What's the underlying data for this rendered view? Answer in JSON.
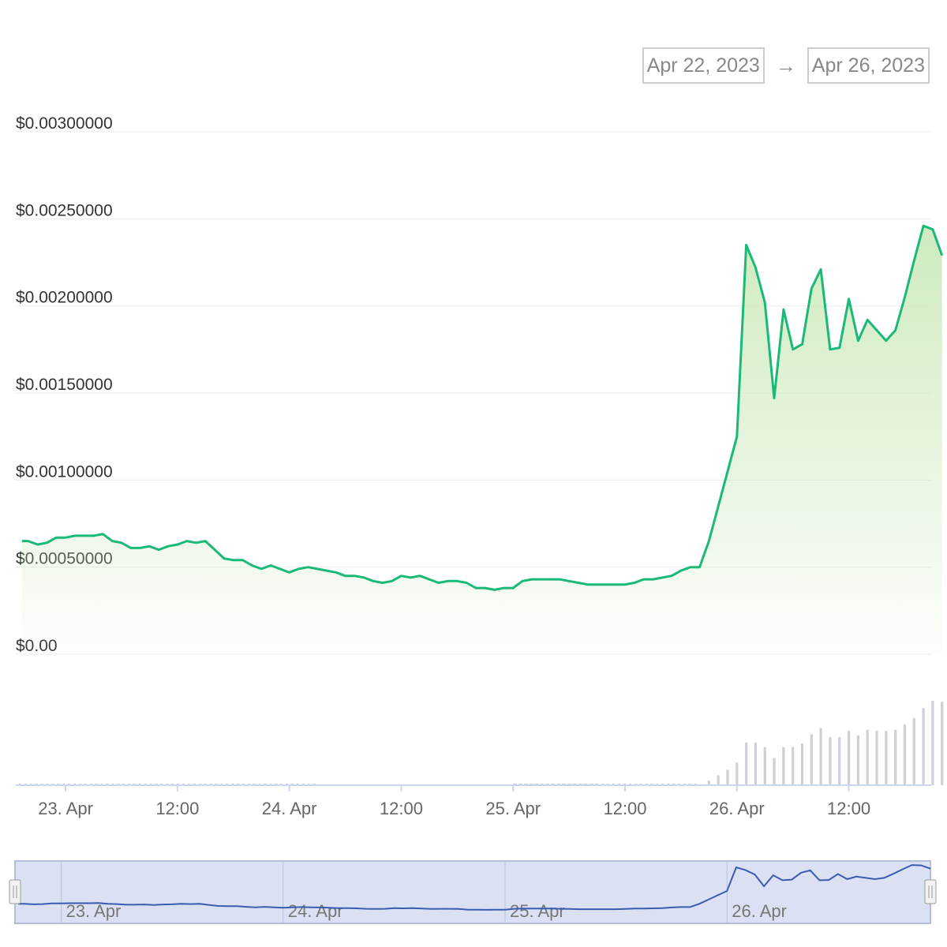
{
  "range_selector": {
    "from": "Apr 22, 2023",
    "arrow": "→",
    "to": "Apr 26, 2023"
  },
  "chart_data": {
    "type": "line",
    "title": "",
    "xlabel": "",
    "ylabel": "",
    "x_ticks": [
      "23. Apr",
      "12:00",
      "24. Apr",
      "12:00",
      "25. Apr",
      "12:00",
      "26. Apr",
      "12:00"
    ],
    "y_ticks": [
      "$0.00",
      "$0.00050000",
      "$0.00100000",
      "$0.00150000",
      "$0.00200000",
      "$0.00250000",
      "$0.00300000"
    ],
    "ylim": [
      0,
      0.003
    ],
    "xlim": [
      "2023-04-22T19:00",
      "2023-04-26T20:30"
    ],
    "grid": true,
    "colors": {
      "line": "#1bb978",
      "area": "#c9e8b8",
      "volume": "#cfcfd6",
      "navigator_line": "#3a5cb0",
      "navigator_bg": "#dbe1f3"
    },
    "series": [
      {
        "values": [
          [
            "2023-04-22T19:20",
            0.00065
          ],
          [
            "2023-04-22T20:00",
            0.00065
          ],
          [
            "2023-04-22T21:00",
            0.00063
          ],
          [
            "2023-04-22T22:00",
            0.00064
          ],
          [
            "2023-04-22T23:00",
            0.00067
          ],
          [
            "2023-04-23T00:00",
            0.00067
          ],
          [
            "2023-04-23T01:00",
            0.00068
          ],
          [
            "2023-04-23T02:00",
            0.00068
          ],
          [
            "2023-04-23T03:00",
            0.00068
          ],
          [
            "2023-04-23T04:00",
            0.00069
          ],
          [
            "2023-04-23T05:00",
            0.00065
          ],
          [
            "2023-04-23T06:00",
            0.00064
          ],
          [
            "2023-04-23T07:00",
            0.00061
          ],
          [
            "2023-04-23T08:00",
            0.00061
          ],
          [
            "2023-04-23T09:00",
            0.00062
          ],
          [
            "2023-04-23T10:00",
            0.0006
          ],
          [
            "2023-04-23T11:00",
            0.00062
          ],
          [
            "2023-04-23T12:00",
            0.00063
          ],
          [
            "2023-04-23T13:00",
            0.00065
          ],
          [
            "2023-04-23T14:00",
            0.00064
          ],
          [
            "2023-04-23T15:00",
            0.00065
          ],
          [
            "2023-04-23T16:00",
            0.0006
          ],
          [
            "2023-04-23T17:00",
            0.00055
          ],
          [
            "2023-04-23T18:00",
            0.00054
          ],
          [
            "2023-04-23T19:00",
            0.00054
          ],
          [
            "2023-04-23T20:00",
            0.00051
          ],
          [
            "2023-04-23T21:00",
            0.00049
          ],
          [
            "2023-04-23T22:00",
            0.00051
          ],
          [
            "2023-04-23T23:00",
            0.00049
          ],
          [
            "2023-04-24T00:00",
            0.00047
          ],
          [
            "2023-04-24T01:00",
            0.00049
          ],
          [
            "2023-04-24T02:00",
            0.0005
          ],
          [
            "2023-04-24T03:00",
            0.00049
          ],
          [
            "2023-04-24T04:00",
            0.00048
          ],
          [
            "2023-04-24T05:00",
            0.00047
          ],
          [
            "2023-04-24T06:00",
            0.00045
          ],
          [
            "2023-04-24T07:00",
            0.00045
          ],
          [
            "2023-04-24T08:00",
            0.00044
          ],
          [
            "2023-04-24T09:00",
            0.00042
          ],
          [
            "2023-04-24T10:00",
            0.00041
          ],
          [
            "2023-04-24T11:00",
            0.00042
          ],
          [
            "2023-04-24T12:00",
            0.00045
          ],
          [
            "2023-04-24T13:00",
            0.00044
          ],
          [
            "2023-04-24T14:00",
            0.00045
          ],
          [
            "2023-04-24T15:00",
            0.00043
          ],
          [
            "2023-04-24T16:00",
            0.00041
          ],
          [
            "2023-04-24T17:00",
            0.00042
          ],
          [
            "2023-04-24T18:00",
            0.00042
          ],
          [
            "2023-04-24T19:00",
            0.00041
          ],
          [
            "2023-04-24T20:00",
            0.00038
          ],
          [
            "2023-04-24T21:00",
            0.00038
          ],
          [
            "2023-04-24T22:00",
            0.00037
          ],
          [
            "2023-04-24T23:00",
            0.00038
          ],
          [
            "2023-04-25T00:00",
            0.00038
          ],
          [
            "2023-04-25T01:00",
            0.00042
          ],
          [
            "2023-04-25T02:00",
            0.00043
          ],
          [
            "2023-04-25T03:00",
            0.00043
          ],
          [
            "2023-04-25T04:00",
            0.00043
          ],
          [
            "2023-04-25T05:00",
            0.00043
          ],
          [
            "2023-04-25T06:00",
            0.00042
          ],
          [
            "2023-04-25T07:00",
            0.00041
          ],
          [
            "2023-04-25T08:00",
            0.0004
          ],
          [
            "2023-04-25T09:00",
            0.0004
          ],
          [
            "2023-04-25T10:00",
            0.0004
          ],
          [
            "2023-04-25T11:00",
            0.0004
          ],
          [
            "2023-04-25T12:00",
            0.0004
          ],
          [
            "2023-04-25T13:00",
            0.00041
          ],
          [
            "2023-04-25T14:00",
            0.00043
          ],
          [
            "2023-04-25T15:00",
            0.00043
          ],
          [
            "2023-04-25T16:00",
            0.00044
          ],
          [
            "2023-04-25T17:00",
            0.00045
          ],
          [
            "2023-04-25T18:00",
            0.00048
          ],
          [
            "2023-04-25T19:00",
            0.0005
          ],
          [
            "2023-04-25T20:00",
            0.0005
          ],
          [
            "2023-04-25T21:00",
            0.00065
          ],
          [
            "2023-04-25T22:00",
            0.00085
          ],
          [
            "2023-04-25T23:00",
            0.00105
          ],
          [
            "2023-04-26T00:00",
            0.00125
          ],
          [
            "2023-04-26T01:00",
            0.00235
          ],
          [
            "2023-04-26T02:00",
            0.00222
          ],
          [
            "2023-04-26T03:00",
            0.00202
          ],
          [
            "2023-04-26T04:00",
            0.00147
          ],
          [
            "2023-04-26T05:00",
            0.00198
          ],
          [
            "2023-04-26T06:00",
            0.00175
          ],
          [
            "2023-04-26T07:00",
            0.00178
          ],
          [
            "2023-04-26T08:00",
            0.0021
          ],
          [
            "2023-04-26T09:00",
            0.00221
          ],
          [
            "2023-04-26T10:00",
            0.00175
          ],
          [
            "2023-04-26T11:00",
            0.00176
          ],
          [
            "2023-04-26T12:00",
            0.00204
          ],
          [
            "2023-04-26T13:00",
            0.0018
          ],
          [
            "2023-04-26T14:00",
            0.00192
          ],
          [
            "2023-04-26T16:00",
            0.0018
          ],
          [
            "2023-04-26T17:00",
            0.00186
          ],
          [
            "2023-04-26T18:00",
            0.00205
          ],
          [
            "2023-04-26T19:00",
            0.00226
          ],
          [
            "2023-04-26T20:00",
            0.00246
          ],
          [
            "2023-04-26T21:00",
            0.00244
          ],
          [
            "2023-04-26T22:00",
            0.00229
          ]
        ]
      }
    ],
    "volume": [
      [
        "2023-04-25T21:00",
        0.05
      ],
      [
        "2023-04-25T22:00",
        0.11
      ],
      [
        "2023-04-25T23:00",
        0.17
      ],
      [
        "2023-04-26T00:00",
        0.25
      ],
      [
        "2023-04-26T01:00",
        0.47
      ],
      [
        "2023-04-26T02:00",
        0.47
      ],
      [
        "2023-04-26T03:00",
        0.42
      ],
      [
        "2023-04-26T04:00",
        0.3
      ],
      [
        "2023-04-26T05:00",
        0.42
      ],
      [
        "2023-04-26T06:00",
        0.42
      ],
      [
        "2023-04-26T07:00",
        0.46
      ],
      [
        "2023-04-26T08:00",
        0.56
      ],
      [
        "2023-04-26T09:00",
        0.63
      ],
      [
        "2023-04-26T10:00",
        0.53
      ],
      [
        "2023-04-26T11:00",
        0.53
      ],
      [
        "2023-04-26T12:00",
        0.6
      ],
      [
        "2023-04-26T13:00",
        0.55
      ],
      [
        "2023-04-26T14:00",
        0.61
      ],
      [
        "2023-04-26T15:00",
        0.6
      ],
      [
        "2023-04-26T16:00",
        0.6
      ],
      [
        "2023-04-26T17:00",
        0.61
      ],
      [
        "2023-04-26T18:00",
        0.67
      ],
      [
        "2023-04-26T19:00",
        0.74
      ],
      [
        "2023-04-26T20:00",
        0.85
      ],
      [
        "2023-04-26T21:00",
        0.93
      ],
      [
        "2023-04-26T22:00",
        0.92
      ]
    ],
    "navigator": {
      "labels": [
        "23. Apr",
        "24. Apr",
        "25. Apr",
        "26. Apr"
      ]
    }
  }
}
